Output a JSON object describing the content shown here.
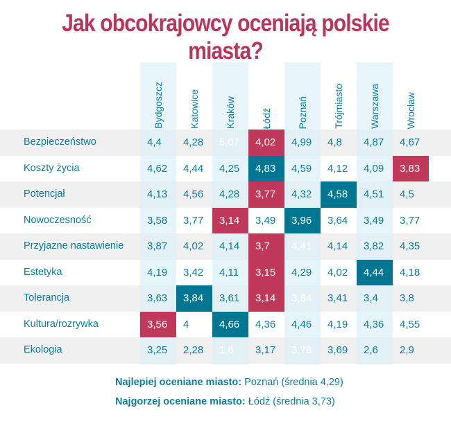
{
  "chart_data": {
    "type": "table",
    "title": "Jak obcokrajowcy oceniają polskie miasta?",
    "columns": [
      "Bydgoszcz",
      "Katowice",
      "Kraków",
      "Łódź",
      "Poznań",
      "Trójmiasto",
      "Warszawa",
      "Wrocław"
    ],
    "rows": [
      {
        "label": "Bezpieczeństwo",
        "values": [
          "4,4",
          "4,28",
          "5,07",
          "4,02",
          "4,99",
          "4,8",
          "4,87",
          "4,67"
        ],
        "highlight": [
          "",
          "",
          "best",
          "worst",
          "",
          "",
          "",
          ""
        ]
      },
      {
        "label": "Koszty życia",
        "values": [
          "4,62",
          "4,44",
          "4,25",
          "4,83",
          "4,59",
          "4,12",
          "4,09",
          "3,83"
        ],
        "highlight": [
          "",
          "",
          "",
          "best",
          "",
          "",
          "",
          "worst"
        ]
      },
      {
        "label": "Potencjał",
        "values": [
          "4,13",
          "4,56",
          "4,28",
          "3,77",
          "4,32",
          "4,58",
          "4,51",
          "4,5"
        ],
        "highlight": [
          "",
          "",
          "",
          "worst",
          "",
          "best",
          "",
          ""
        ]
      },
      {
        "label": "Nowoczesność",
        "values": [
          "3,58",
          "3,77",
          "3,14",
          "3,49",
          "3,96",
          "3,64",
          "3,49",
          "3,77"
        ],
        "highlight": [
          "",
          "",
          "worst",
          "",
          "best",
          "",
          "",
          ""
        ]
      },
      {
        "label": "Przyjazne nastawienie",
        "values": [
          "3,87",
          "4,02",
          "4,14",
          "3,7",
          "4,41",
          "4,14",
          "3,82",
          "4,35"
        ],
        "highlight": [
          "",
          "",
          "",
          "worst",
          "best",
          "",
          "",
          ""
        ]
      },
      {
        "label": "Estetyka",
        "values": [
          "4,19",
          "3,42",
          "4,11",
          "3,15",
          "4,29",
          "4,02",
          "4,44",
          "4,18"
        ],
        "highlight": [
          "",
          "",
          "",
          "worst",
          "",
          "",
          "best",
          ""
        ]
      },
      {
        "label": "Tolerancja",
        "values": [
          "3,63",
          "3,84",
          "3,61",
          "3,14",
          "3,84",
          "3,41",
          "3,4",
          "3,8"
        ],
        "highlight": [
          "",
          "best",
          "",
          "worst",
          "best",
          "",
          "",
          ""
        ]
      },
      {
        "label": "Kultura/rozrywka",
        "values": [
          "3,56",
          "4",
          "4,66",
          "4,36",
          "4,46",
          "4,19",
          "4,36",
          "4,55"
        ],
        "highlight": [
          "worst",
          "",
          "best",
          "",
          "",
          "",
          "",
          ""
        ]
      },
      {
        "label": "Ekologia",
        "values": [
          "3,25",
          "2,28",
          "1,6",
          "3,17",
          "3,78",
          "3,69",
          "2,6",
          "2,9"
        ],
        "highlight": [
          "",
          "",
          "worst",
          "",
          "best",
          "",
          "",
          ""
        ]
      }
    ],
    "colors": {
      "best": "#007792",
      "worst": "#c0385a"
    }
  },
  "footer": {
    "best_label": "Najlepiej oceniane miasto:",
    "best_value": "Poznań (średnia 4,29)",
    "worst_label": "Najgorzej oceniane miasto:",
    "worst_value": "Łódź (średnia 3,73)"
  }
}
